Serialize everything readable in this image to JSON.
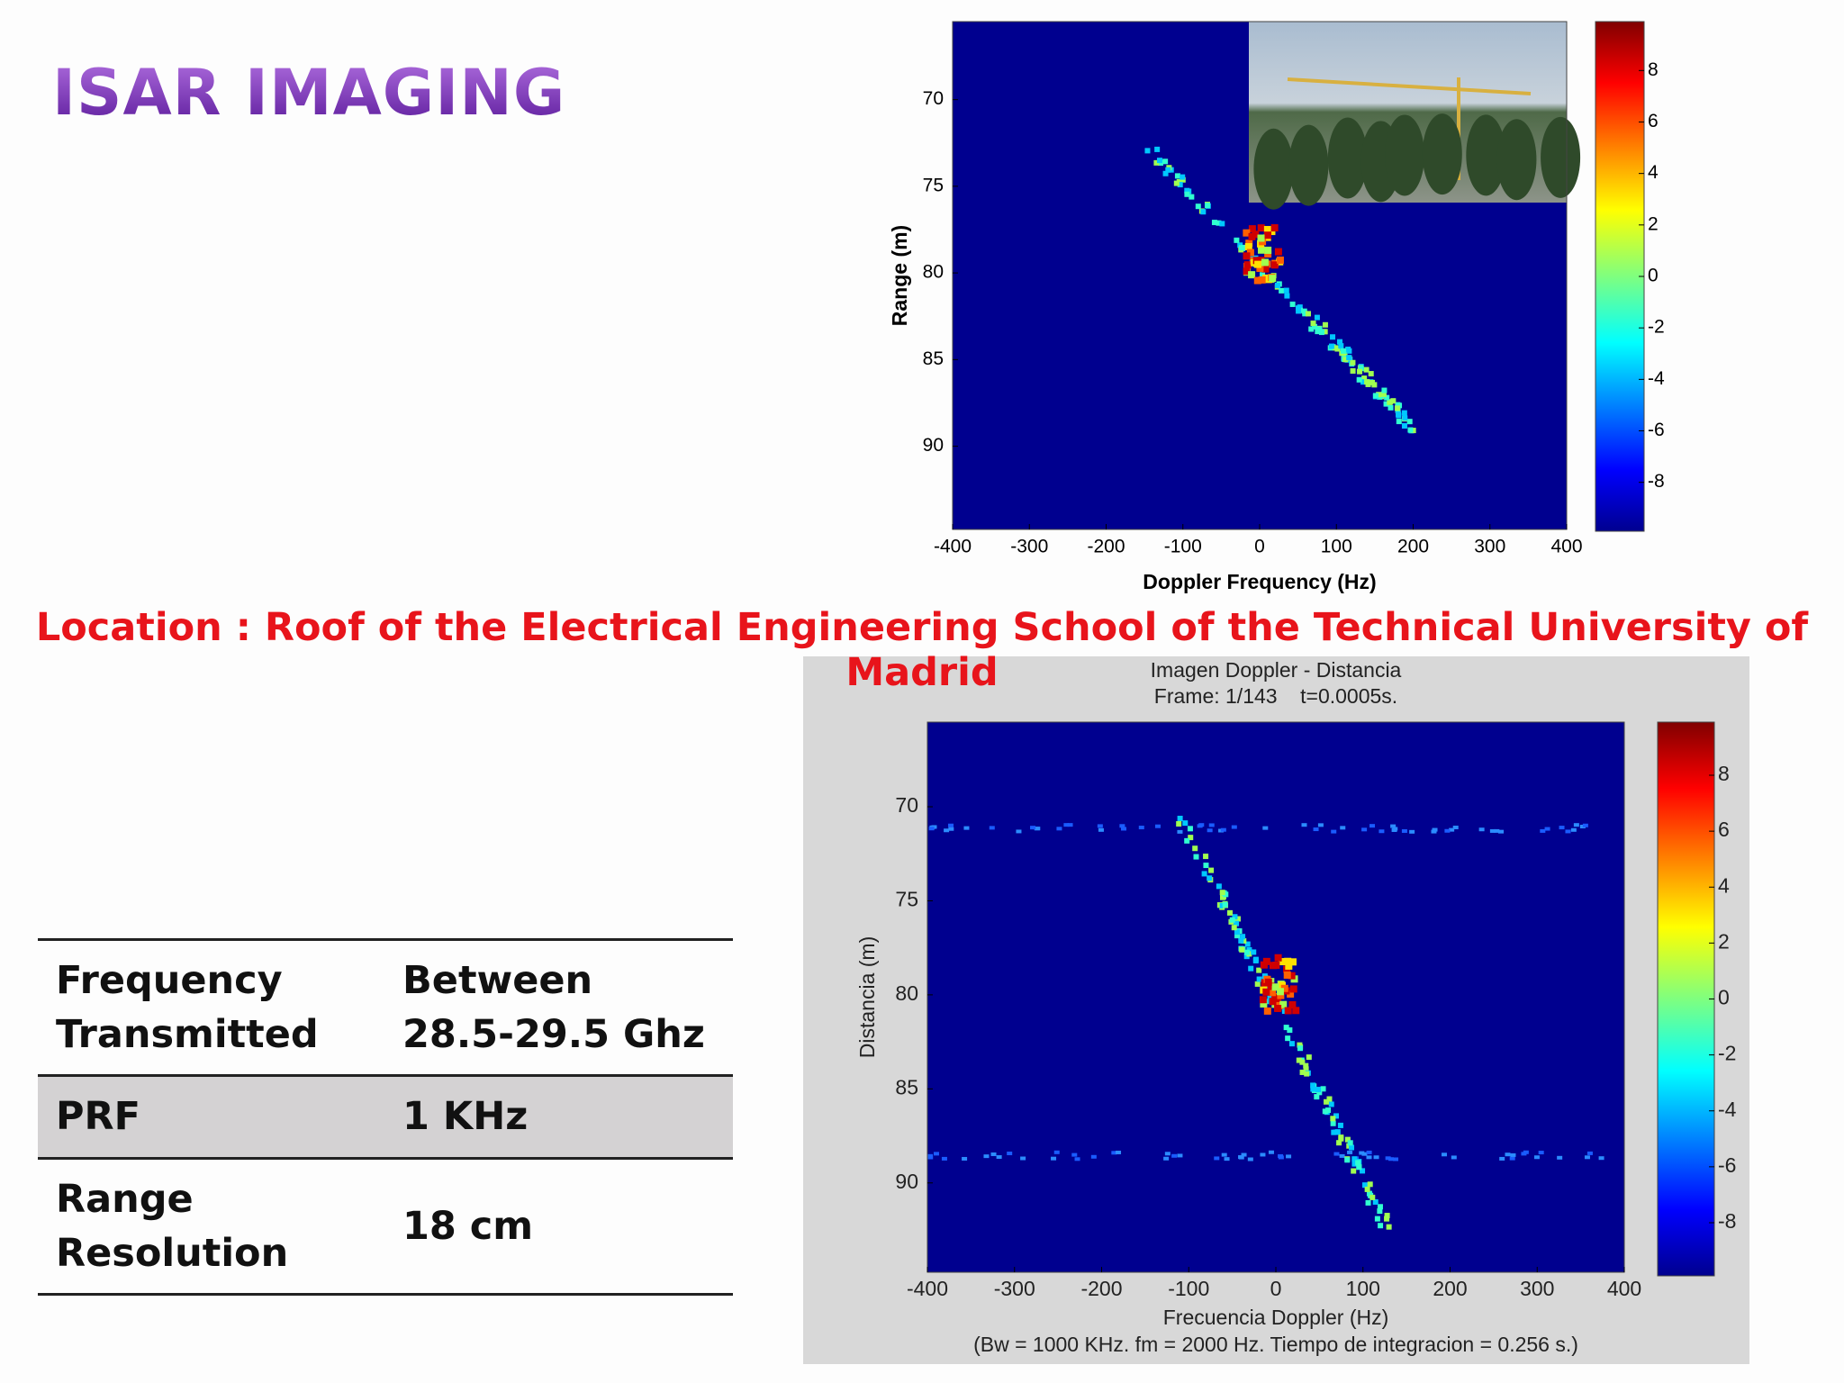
{
  "header": {
    "title": "ISAR IMAGING"
  },
  "figures": [
    {
      "ylabel": "Range (m)",
      "xlabel": "Doppler Frequency (Hz)",
      "xlim": [
        -400,
        400
      ],
      "xticks": [
        -400,
        -300,
        -200,
        -100,
        0,
        100,
        200,
        300,
        400
      ],
      "ylim": [
        65.5,
        94.8
      ],
      "yticks": [
        70,
        75,
        80,
        85,
        90
      ],
      "clim": [
        -9.9,
        9.9
      ],
      "cticks": [
        8,
        6,
        4,
        2,
        0,
        -2,
        -4,
        -6,
        -8
      ]
    },
    {
      "title_lines": [
        "Imagen Doppler - Distancia",
        "Frame: 1/143    t=0.0005s."
      ],
      "ylabel": "Distancia (m)",
      "xlabel": "Frecuencia Doppler (Hz)",
      "note": "(Bw = 1000 KHz. fm = 2000 Hz. Tiempo de integracion = 0.256 s.)",
      "xlim": [
        -400,
        400
      ],
      "xticks": [
        -400,
        -300,
        -200,
        -100,
        0,
        100,
        200,
        300,
        400
      ],
      "ylim": [
        65.5,
        94.75
      ],
      "yticks": [
        70,
        75,
        80,
        85,
        90
      ],
      "clim": [
        -9.9,
        9.9
      ],
      "cticks": [
        8,
        6,
        4,
        2,
        0,
        -2,
        -4,
        -6,
        -8
      ]
    }
  ],
  "location": "Location : Roof of the Electrical Engineering School of the Technical University of Madrid",
  "table": {
    "rows": [
      [
        "Frequency Transmitted",
        "Between 28.5-29.5 Ghz"
      ],
      [
        "PRF",
        "1 KHz"
      ],
      [
        "Range Resolution",
        "18 cm"
      ]
    ]
  }
}
